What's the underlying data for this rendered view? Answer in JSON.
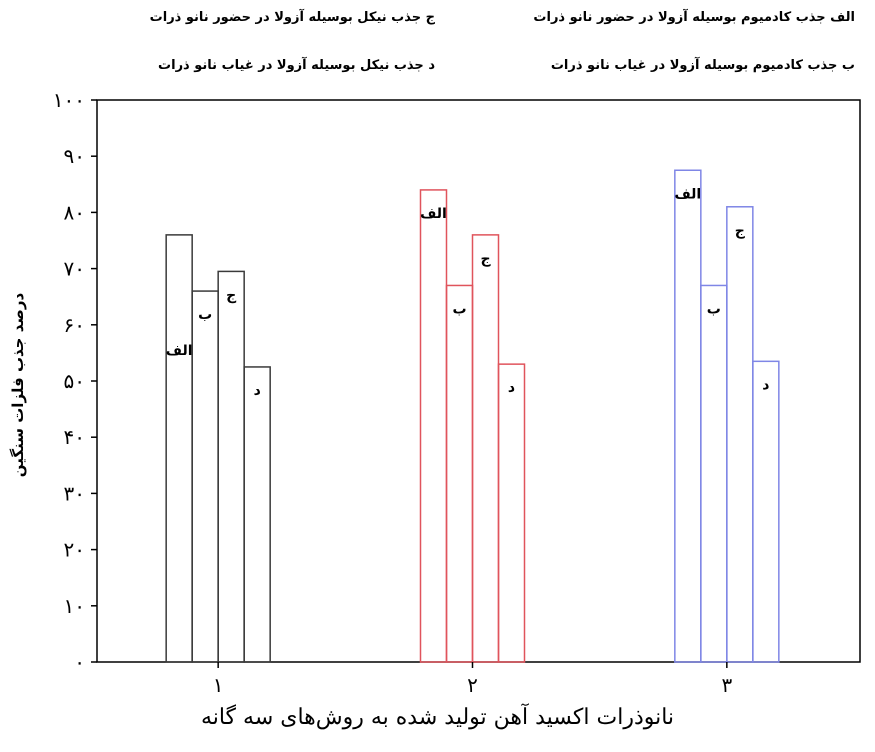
{
  "legend": {
    "a": "الف  جذب کادمیوم بوسیله آزولا در حضور نانو ذرات",
    "b": "ب  جذب کادمیوم بوسیله آزولا در غیاب نانو ذرات",
    "c": "ج  جذب نیکل بوسیله آزولا در حضور نانو ذرات",
    "d": "د  جذب نیکل بوسیله آزولا در غیاب نانو ذرات"
  },
  "chart_data": {
    "type": "bar",
    "xlabel": "نانوذرات اکسید آهن تولید شده به روش‌های سه گانه",
    "ylabel": "درصد جذب فلزات سنگین",
    "ylim": [
      0,
      100
    ],
    "yticks": [
      "۰",
      "۱۰",
      "۲۰",
      "۳۰",
      "۴۰",
      "۵۰",
      "۶۰",
      "۷۰",
      "۸۰",
      "۹۰",
      "۱۰۰"
    ],
    "categories": [
      "۱",
      "۲",
      "۳"
    ],
    "category_colors": [
      "#3a3a3a",
      "#e0545c",
      "#7f86e6"
    ],
    "series": [
      {
        "name": "الف",
        "values": [
          76,
          84,
          87.5
        ]
      },
      {
        "name": "ب",
        "values": [
          66,
          67,
          67
        ]
      },
      {
        "name": "ج",
        "values": [
          69.5,
          76,
          81
        ]
      },
      {
        "name": "د",
        "values": [
          52.5,
          53,
          53.5
        ]
      }
    ],
    "bar_labels": [
      "الف",
      "ب",
      "ج",
      "د"
    ],
    "grid": false
  }
}
